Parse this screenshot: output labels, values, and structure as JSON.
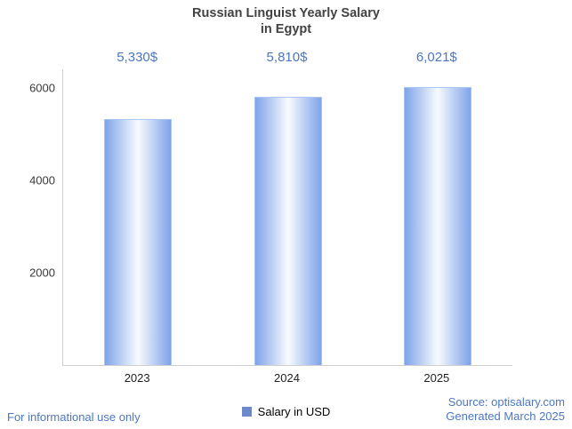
{
  "title": {
    "line1": "Russian Linguist Yearly Salary",
    "line2": "in Egypt"
  },
  "legend": {
    "label": "Salary in USD"
  },
  "footer": {
    "left": "For informational use only",
    "source": "Source: optisalary.com",
    "generated": "Generated March 2025"
  },
  "colors": {
    "accent_blue": "#4c77c2",
    "bar_edge_blue": "#7fa3e8",
    "bar_border": "#a9c7f5",
    "legend_swatch": "#6e88cc",
    "axis_line": "#cfcfcf",
    "title_text": "#424242"
  },
  "chart_data": {
    "type": "bar",
    "title": "Russian Linguist Yearly Salary in Egypt",
    "categories": [
      "2023",
      "2024",
      "2025"
    ],
    "values": [
      5330,
      5810,
      6021
    ],
    "value_labels": [
      "5,330$",
      "5,810$",
      "6,021$"
    ],
    "series": [
      {
        "name": "Salary in USD",
        "values": [
          5330,
          5810,
          6021
        ]
      }
    ],
    "xlabel": "",
    "ylabel": "",
    "ylim": [
      0,
      6400
    ],
    "yticks": [
      2000,
      4000,
      6000
    ],
    "grid": false,
    "legend_position": "bottom"
  }
}
